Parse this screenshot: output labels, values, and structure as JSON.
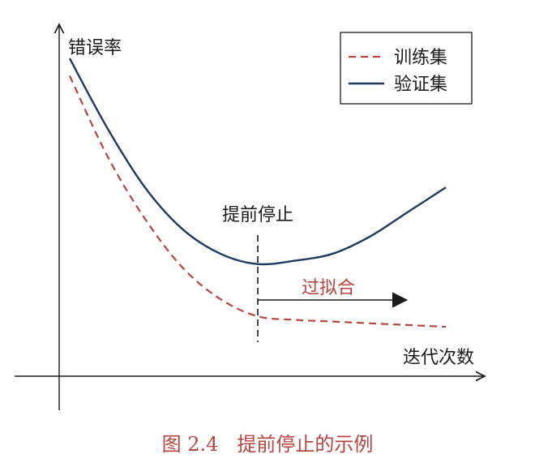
{
  "chart_data": {
    "type": "line",
    "ylabel": "错误率",
    "xlabel": "迭代次数",
    "legend": {
      "position": "top-right"
    },
    "series": [
      {
        "name": "训练集",
        "style": "dashed",
        "color": "#b8433f",
        "points": [
          [
            0.0,
            0.85
          ],
          [
            0.1,
            0.62
          ],
          [
            0.2,
            0.44
          ],
          [
            0.3,
            0.3
          ],
          [
            0.4,
            0.21
          ],
          [
            0.5,
            0.16
          ],
          [
            0.6,
            0.15
          ],
          [
            0.7,
            0.145
          ],
          [
            0.8,
            0.14
          ],
          [
            0.9,
            0.135
          ],
          [
            1.0,
            0.13
          ]
        ]
      },
      {
        "name": "验证集",
        "style": "solid",
        "color": "#1f3a5f",
        "points": [
          [
            0.0,
            0.9
          ],
          [
            0.1,
            0.7
          ],
          [
            0.2,
            0.53
          ],
          [
            0.3,
            0.41
          ],
          [
            0.4,
            0.34
          ],
          [
            0.5,
            0.31
          ],
          [
            0.6,
            0.32
          ],
          [
            0.7,
            0.34
          ],
          [
            0.8,
            0.39
          ],
          [
            0.9,
            0.46
          ],
          [
            1.0,
            0.53
          ]
        ]
      }
    ],
    "annotations": {
      "early_stop": {
        "label": "提前停止",
        "x": 0.5
      },
      "overfit": {
        "label": "过拟合",
        "color": "#b8433f"
      }
    }
  },
  "caption": {
    "figure_label": "图 2.4",
    "text": "提前停止的示例"
  }
}
